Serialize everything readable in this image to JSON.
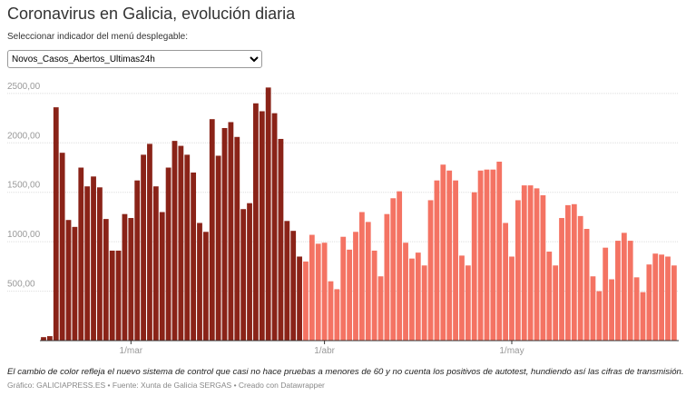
{
  "title": "Coronavirus en Galicia, evolución diaria",
  "selector_label": "Seleccionar indicador del menú desplegable:",
  "selector_value": "Novos_Casos_Abertos_Ultimas24h",
  "notes": "El cambio de color refleja el nuevo sistema de control que casi no hace pruebas a menores de 60 y no cuenta los positivos de autotest, hundiendo así las cifras de transmisión.",
  "footer": "Gráfico: GALICIAPRESS.ES • Fuente: Xunta de Galicia SERGAS • Creado con Datawrapper",
  "chart_data": {
    "type": "bar",
    "categories": [
      null,
      null,
      null,
      null,
      null,
      null,
      null,
      null,
      null,
      null,
      null,
      null,
      null,
      null,
      "1/mar",
      null,
      null,
      null,
      null,
      null,
      null,
      null,
      null,
      null,
      null,
      null,
      null,
      null,
      null,
      null,
      null,
      null,
      null,
      null,
      null,
      null,
      null,
      null,
      null,
      null,
      null,
      null,
      null,
      null,
      null,
      "1/abr",
      null,
      null,
      null,
      null,
      null,
      null,
      null,
      null,
      null,
      null,
      null,
      null,
      null,
      null,
      null,
      null,
      null,
      null,
      null,
      null,
      null,
      null,
      null,
      null,
      null,
      null,
      null,
      null,
      null,
      "1/may",
      null,
      null,
      null,
      null,
      null,
      null,
      null,
      null,
      null,
      null,
      null,
      null,
      null,
      null,
      null,
      null,
      null,
      null,
      null,
      null,
      null,
      null,
      null,
      null,
      null,
      null
    ],
    "series": [
      {
        "color": "#8a2318",
        "values": [
          35,
          45,
          2360,
          1900,
          1220,
          1150,
          1750,
          1560,
          1660,
          1550,
          1230,
          910,
          910,
          1280,
          1240,
          1620,
          1880,
          1990,
          1560,
          1300,
          1750,
          2020,
          1970,
          1880,
          1700,
          1190,
          1100,
          2240,
          1870,
          2150,
          2210,
          2060,
          1330,
          1390,
          2400,
          2320,
          2560,
          2300,
          2040,
          1210,
          1110,
          850,
          null,
          null,
          null,
          null,
          null,
          null,
          null,
          null,
          null,
          null,
          null,
          null,
          null,
          null,
          null,
          null,
          null,
          null,
          null,
          null,
          null,
          null,
          null,
          null,
          null,
          null,
          null,
          null,
          null,
          null,
          null,
          null,
          null,
          null,
          null,
          null,
          null,
          null,
          null,
          null,
          null,
          null,
          null,
          null,
          null,
          null,
          null,
          null,
          null,
          null,
          null,
          null,
          null,
          null,
          null,
          null,
          null,
          null,
          null,
          null
        ]
      },
      {
        "color": "#f47363",
        "values": [
          null,
          null,
          null,
          null,
          null,
          null,
          null,
          null,
          null,
          null,
          null,
          null,
          null,
          null,
          null,
          null,
          null,
          null,
          null,
          null,
          null,
          null,
          null,
          null,
          null,
          null,
          null,
          null,
          null,
          null,
          null,
          null,
          null,
          null,
          null,
          null,
          null,
          null,
          null,
          null,
          null,
          null,
          800,
          1070,
          980,
          990,
          600,
          520,
          1050,
          920,
          1100,
          1300,
          1200,
          910,
          650,
          1280,
          1440,
          1510,
          990,
          830,
          890,
          760,
          1420,
          1620,
          1780,
          1720,
          1620,
          860,
          760,
          1500,
          1720,
          1730,
          1730,
          1810,
          1190,
          850,
          1420,
          1570,
          1570,
          1540,
          1470,
          900,
          760,
          1240,
          1370,
          1380,
          1260,
          1130,
          650,
          500,
          940,
          620,
          1010,
          1090,
          1010,
          640,
          490,
          770,
          880,
          870,
          850,
          760
        ]
      }
    ],
    "ylim": [
      0,
      2600
    ],
    "yticks": [
      {
        "value": 500,
        "label": "500,00"
      },
      {
        "value": 1000,
        "label": "1000,00"
      },
      {
        "value": 1500,
        "label": "1500,00"
      },
      {
        "value": 2000,
        "label": "2000,00"
      },
      {
        "value": 2500,
        "label": "2500,00"
      }
    ],
    "grid": true
  }
}
